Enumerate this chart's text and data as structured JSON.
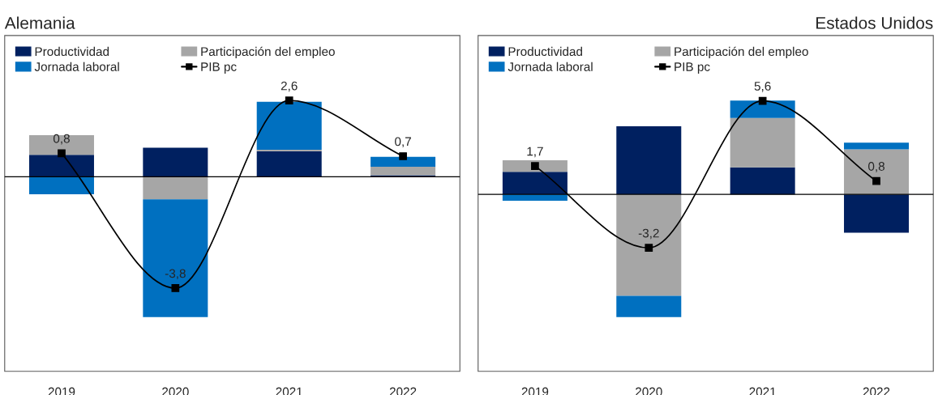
{
  "chart_data": [
    {
      "type": "bar",
      "title": "Alemania",
      "stacked": true,
      "legend": "top left",
      "marker": "square",
      "categories": [
        "2019",
        "2020",
        "2021",
        "2022"
      ],
      "series": [
        {
          "name": "Productividad",
          "color": "#002060",
          "values": [
            0.75,
            0.99,
            0.87,
            0.05
          ]
        },
        {
          "name": "Participación del empleo",
          "color": "#a6a6a6",
          "values": [
            0.67,
            -0.77,
            0.05,
            0.29
          ]
        },
        {
          "name": "Jornada laboral",
          "color": "#0070c0",
          "values": [
            -0.6,
            -4.02,
            1.64,
            0.34
          ]
        },
        {
          "name": "PIB pc",
          "type": "line",
          "color": "#000000",
          "values": [
            0.8,
            -3.8,
            2.6,
            0.7
          ],
          "value_labels": [
            "0,8",
            "-3,8",
            "2,6",
            "0,7"
          ]
        }
      ]
    },
    {
      "type": "bar",
      "title": "Estados Unidos",
      "stacked": true,
      "legend": "top left",
      "marker": "square",
      "categories": [
        "2019",
        "2020",
        "2021",
        "2022"
      ],
      "series": [
        {
          "name": "Productividad",
          "color": "#002060",
          "values": [
            1.35,
            4.08,
            1.62,
            -2.3
          ]
        },
        {
          "name": "Participación del empleo",
          "color": "#a6a6a6",
          "values": [
            0.69,
            -6.08,
            2.96,
            2.7
          ]
        },
        {
          "name": "Jornada laboral",
          "color": "#0070c0",
          "values": [
            -0.38,
            -1.27,
            1.04,
            0.4
          ]
        },
        {
          "name": "PIB pc",
          "type": "line",
          "color": "#000000",
          "values": [
            1.7,
            -3.2,
            5.6,
            0.8
          ],
          "value_labels": [
            "1,7",
            "-3,2",
            "5,6",
            "0,8"
          ]
        }
      ]
    }
  ]
}
